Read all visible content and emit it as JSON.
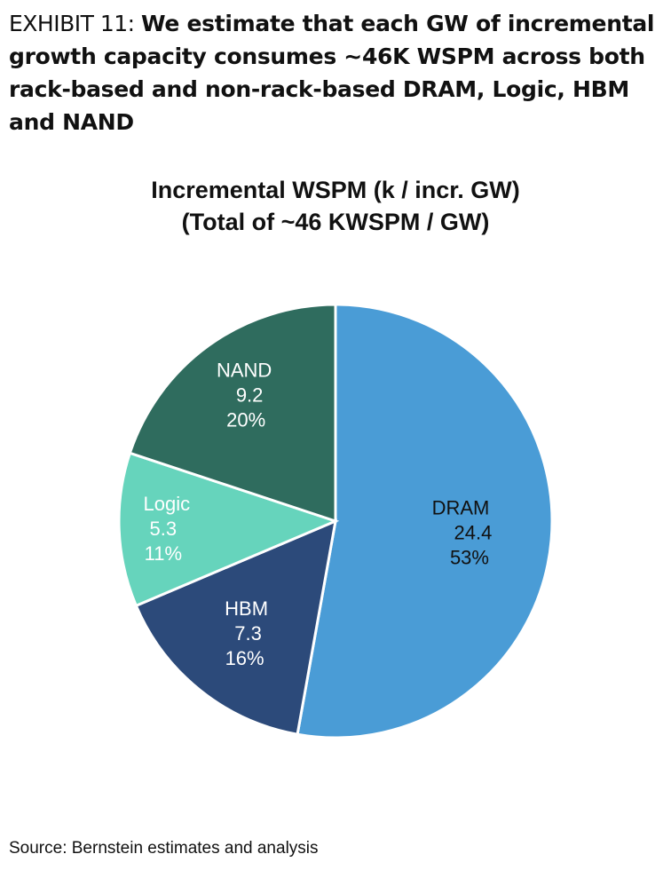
{
  "exhibit": {
    "label": "EXHIBIT 11: ",
    "title": "We estimate that each GW of incremental growth capacity consumes ~46K WSPM across both rack-based and non-rack-based DRAM, Logic, HBM and NAND"
  },
  "chart_data": {
    "type": "pie",
    "title": "Incremental WSPM (k / incr. GW)",
    "subtitle": "(Total of ~46 KWSPM / GW)",
    "slices": [
      {
        "label": "DRAM",
        "value": 24.4,
        "percent": "53%",
        "color": "#4a9cd6",
        "text_color": "#111111"
      },
      {
        "label": "HBM",
        "value": 7.3,
        "percent": "16%",
        "color": "#2c4a7a",
        "text_color": "#ffffff"
      },
      {
        "label": "Logic",
        "value": 5.3,
        "percent": "11%",
        "color": "#66d4bc",
        "text_color": "#ffffff"
      },
      {
        "label": "NAND",
        "value": 9.2,
        "percent": "20%",
        "color": "#2f6c5e",
        "text_color": "#ffffff"
      }
    ]
  },
  "footer": {
    "source": "Source: Bernstein estimates and analysis"
  }
}
